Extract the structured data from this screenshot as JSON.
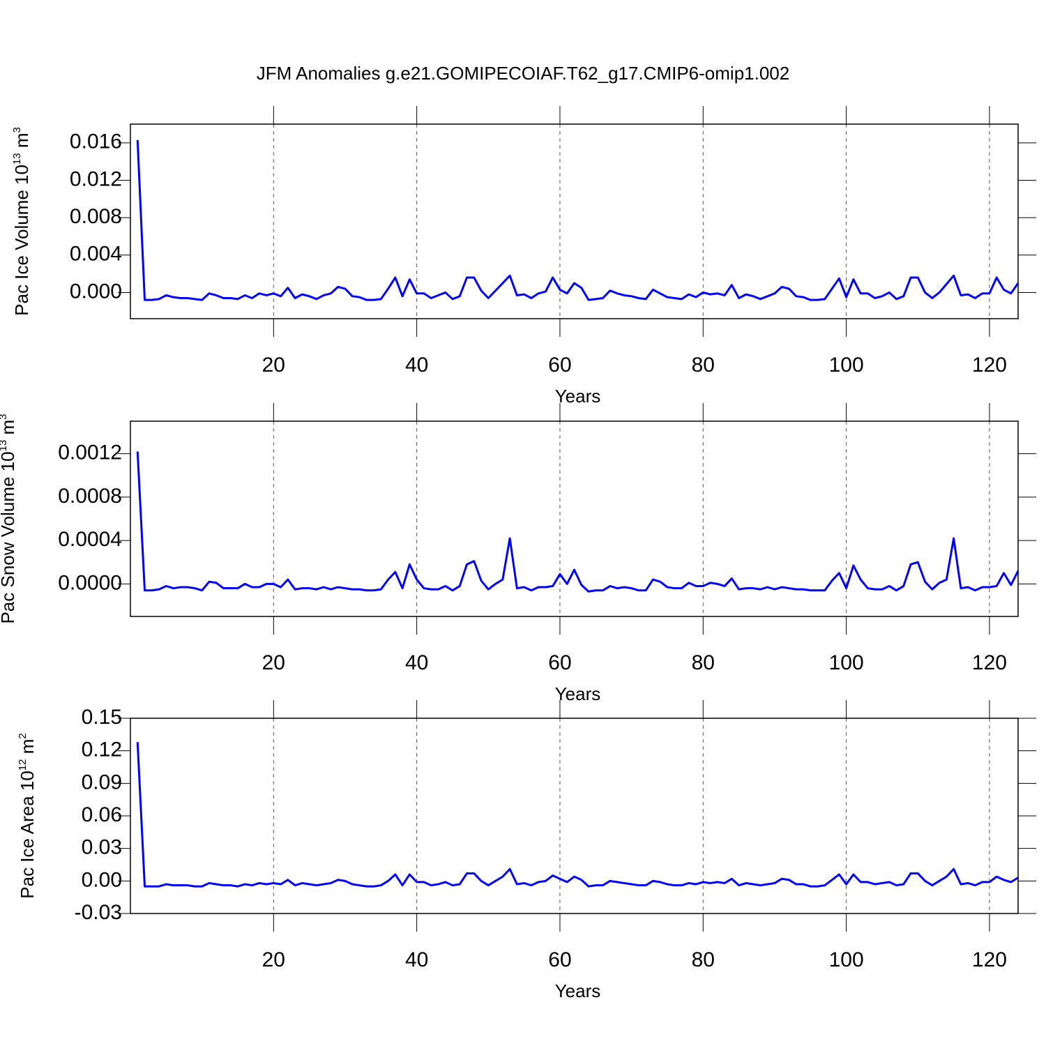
{
  "title": "JFM Anomalies g.e21.GOMIPECOIAF.T62_g17.CMIP6-omip1.002",
  "chart_data": [
    {
      "type": "line",
      "ylabel": {
        "text": "Pac Ice Volume 10",
        "exponent": "13",
        "unit": " m",
        "unit_exponent": "3"
      },
      "xlabel": "Years",
      "color": "#0000ff",
      "grid": "x",
      "xlim": [
        0,
        124
      ],
      "xticks": [
        20,
        40,
        60,
        80,
        100,
        120
      ],
      "ylim": [
        -0.0028,
        0.018
      ],
      "yticks": [
        {
          "value": 0,
          "label": "0.000"
        },
        0.004,
        0.008,
        0.012,
        0.016
      ],
      "x": [
        1,
        2,
        3,
        4,
        5,
        6,
        7,
        8,
        9,
        10,
        11,
        12,
        13,
        14,
        15,
        16,
        17,
        18,
        19,
        20,
        21,
        22,
        23,
        24,
        25,
        26,
        27,
        28,
        29,
        30,
        31,
        32,
        33,
        34,
        35,
        36,
        37,
        38,
        39,
        40,
        41,
        42,
        43,
        44,
        45,
        46,
        47,
        48,
        49,
        50,
        51,
        52,
        53,
        54,
        55,
        56,
        57,
        58,
        59,
        60,
        61,
        62,
        63,
        64,
        65,
        66,
        67,
        68,
        69,
        70,
        71,
        72,
        73,
        74,
        75,
        76,
        77,
        78,
        79,
        80,
        81,
        82,
        83,
        84,
        85,
        86,
        87,
        88,
        89,
        90,
        91,
        92,
        93,
        94,
        95,
        96,
        97,
        98,
        99,
        100,
        101,
        102,
        103,
        104,
        105,
        106,
        107,
        108,
        109,
        110,
        111,
        112,
        113,
        114,
        115,
        116,
        117,
        118,
        119,
        120,
        121,
        122,
        123,
        124
      ],
      "values": [
        0.0163,
        -0.0008,
        -0.0008,
        -0.0007,
        -0.0003,
        -0.0005,
        -0.0006,
        -0.0006,
        -0.0007,
        -0.0008,
        -0.0001,
        -0.0003,
        -0.0006,
        -0.0006,
        -0.0007,
        -0.0003,
        -0.0006,
        -0.0001,
        -0.0003,
        -0.0001,
        -0.0004,
        0.0005,
        -0.0006,
        -0.0002,
        -0.0004,
        -0.0007,
        -0.0003,
        -0.0001,
        0.0006,
        0.0004,
        -0.0004,
        -0.0005,
        -0.0008,
        -0.0008,
        -0.0007,
        0.0004,
        0.0016,
        -0.0004,
        0.0014,
        -0.0001,
        -0.0001,
        -0.0006,
        -0.0003,
        0,
        -0.0007,
        -0.0004,
        0.0016,
        0.0016,
        0.0002,
        -0.0006,
        0.0002,
        0.001,
        0.0018,
        -0.0003,
        -0.0002,
        -0.0006,
        -0.0001,
        0.0001,
        0.0016,
        0.0003,
        -0.0001,
        0.001,
        0.0005,
        -0.0008,
        -0.0007,
        -0.0006,
        0.0002,
        -0.0001,
        -0.0003,
        -0.0004,
        -0.0006,
        -0.0007,
        0.0003,
        -0.0001,
        -0.0005,
        -0.0006,
        -0.0007,
        -0.0002,
        -0.0005,
        0,
        -0.0002,
        -0.0001,
        -0.0003,
        0.0008,
        -0.0006,
        -0.0002,
        -0.0004,
        -0.0007,
        -0.0004,
        -0.0001,
        0.0006,
        0.0004,
        -0.0004,
        -0.0005,
        -0.0008,
        -0.0008,
        -0.0007,
        0.0004,
        0.0015,
        -0.0005,
        0.0014,
        -0.0001,
        -0.0001,
        -0.0006,
        -0.0004,
        0,
        -0.0007,
        -0.0004,
        0.0016,
        0.0016,
        0,
        -0.0006,
        0,
        0.0009,
        0.0018,
        -0.0003,
        -0.0002,
        -0.0006,
        -0.0001,
        -0.0001,
        0.0016,
        0.0003,
        -0.0001,
        0.001
      ]
    },
    {
      "type": "line",
      "ylabel": {
        "text": "Pac Snow Volume 10",
        "exponent": "13",
        "unit": " m",
        "unit_exponent": "3"
      },
      "xlabel": "Years",
      "color": "#0000ff",
      "grid": "x",
      "xlim": [
        0,
        124
      ],
      "xticks": [
        20,
        40,
        60,
        80,
        100,
        120
      ],
      "ylim": [
        -0.0003,
        0.0015
      ],
      "yticks": [
        {
          "value": 0,
          "label": "0.0000"
        },
        0.0004,
        0.0008,
        0.0012
      ],
      "x": [
        1,
        2,
        3,
        4,
        5,
        6,
        7,
        8,
        9,
        10,
        11,
        12,
        13,
        14,
        15,
        16,
        17,
        18,
        19,
        20,
        21,
        22,
        23,
        24,
        25,
        26,
        27,
        28,
        29,
        30,
        31,
        32,
        33,
        34,
        35,
        36,
        37,
        38,
        39,
        40,
        41,
        42,
        43,
        44,
        45,
        46,
        47,
        48,
        49,
        50,
        51,
        52,
        53,
        54,
        55,
        56,
        57,
        58,
        59,
        60,
        61,
        62,
        63,
        64,
        65,
        66,
        67,
        68,
        69,
        70,
        71,
        72,
        73,
        74,
        75,
        76,
        77,
        78,
        79,
        80,
        81,
        82,
        83,
        84,
        85,
        86,
        87,
        88,
        89,
        90,
        91,
        92,
        93,
        94,
        95,
        96,
        97,
        98,
        99,
        100,
        101,
        102,
        103,
        104,
        105,
        106,
        107,
        108,
        109,
        110,
        111,
        112,
        113,
        114,
        115,
        116,
        117,
        118,
        119,
        120,
        121,
        122,
        123,
        124
      ],
      "values": [
        0.00122,
        -6e-05,
        -6e-05,
        -5e-05,
        -2e-05,
        -4e-05,
        -3e-05,
        -3e-05,
        -4e-05,
        -6e-05,
        2e-05,
        1e-05,
        -4e-05,
        -4e-05,
        -4e-05,
        0,
        -3e-05,
        -3e-05,
        0,
        0,
        -3e-05,
        4e-05,
        -5e-05,
        -4e-05,
        -4e-05,
        -5e-05,
        -3e-05,
        -5e-05,
        -3e-05,
        -4e-05,
        -5e-05,
        -5e-05,
        -6e-05,
        -6e-05,
        -5e-05,
        4e-05,
        0.00011,
        -4e-05,
        0.00018,
        4e-05,
        -4e-05,
        -5e-05,
        -5e-05,
        -2e-05,
        -6e-05,
        -2e-05,
        0.00018,
        0.00021,
        3e-05,
        -5e-05,
        0,
        4e-05,
        0.00042,
        -4e-05,
        -3e-05,
        -6e-05,
        -3e-05,
        -3e-05,
        -2e-05,
        9e-05,
        0,
        0.00013,
        -1e-05,
        -7e-05,
        -6e-05,
        -6e-05,
        -2e-05,
        -4e-05,
        -3e-05,
        -4e-05,
        -6e-05,
        -6e-05,
        4e-05,
        2e-05,
        -3e-05,
        -4e-05,
        -4e-05,
        1e-05,
        -2e-05,
        -2e-05,
        1e-05,
        0,
        -2e-05,
        5e-05,
        -5e-05,
        -4e-05,
        -4e-05,
        -5e-05,
        -3e-05,
        -5e-05,
        -3e-05,
        -4e-05,
        -5e-05,
        -5e-05,
        -6e-05,
        -6e-05,
        -6e-05,
        3e-05,
        0.0001,
        -4e-05,
        0.00017,
        4e-05,
        -4e-05,
        -5e-05,
        -5e-05,
        -2e-05,
        -6e-05,
        -2e-05,
        0.00018,
        0.0002,
        2e-05,
        -5e-05,
        1e-05,
        4e-05,
        0.00042,
        -4e-05,
        -3e-05,
        -6e-05,
        -3e-05,
        -3e-05,
        -2e-05,
        0.0001,
        -1e-05,
        0.00012
      ]
    },
    {
      "type": "line",
      "ylabel": {
        "text": "Pac Ice Area 10",
        "exponent": "12",
        "unit": " m",
        "unit_exponent": "2"
      },
      "xlabel": "Years",
      "color": "#0000ff",
      "grid": "x",
      "xlim": [
        0,
        124
      ],
      "xticks": [
        20,
        40,
        60,
        80,
        100,
        120
      ],
      "ylim": [
        -0.03,
        0.15
      ],
      "yticks": [
        -0.03,
        {
          "value": 0,
          "label": "0.00"
        },
        0.03,
        0.06,
        0.09,
        0.12,
        0.15
      ],
      "x": [
        1,
        2,
        3,
        4,
        5,
        6,
        7,
        8,
        9,
        10,
        11,
        12,
        13,
        14,
        15,
        16,
        17,
        18,
        19,
        20,
        21,
        22,
        23,
        24,
        25,
        26,
        27,
        28,
        29,
        30,
        31,
        32,
        33,
        34,
        35,
        36,
        37,
        38,
        39,
        40,
        41,
        42,
        43,
        44,
        45,
        46,
        47,
        48,
        49,
        50,
        51,
        52,
        53,
        54,
        55,
        56,
        57,
        58,
        59,
        60,
        61,
        62,
        63,
        64,
        65,
        66,
        67,
        68,
        69,
        70,
        71,
        72,
        73,
        74,
        75,
        76,
        77,
        78,
        79,
        80,
        81,
        82,
        83,
        84,
        85,
        86,
        87,
        88,
        89,
        90,
        91,
        92,
        93,
        94,
        95,
        96,
        97,
        98,
        99,
        100,
        101,
        102,
        103,
        104,
        105,
        106,
        107,
        108,
        109,
        110,
        111,
        112,
        113,
        114,
        115,
        116,
        117,
        118,
        119,
        120,
        121,
        122,
        123,
        124
      ],
      "values": [
        0.128,
        -0.005,
        -0.005,
        -0.005,
        -0.003,
        -0.004,
        -0.004,
        -0.004,
        -0.005,
        -0.005,
        -0.002,
        -0.003,
        -0.004,
        -0.004,
        -0.005,
        -0.003,
        -0.004,
        -0.002,
        -0.003,
        -0.002,
        -0.003,
        0.001,
        -0.004,
        -0.002,
        -0.003,
        -0.004,
        -0.003,
        -0.002,
        0.001,
        0,
        -0.003,
        -0.004,
        -0.005,
        -0.005,
        -0.004,
        0,
        0.006,
        -0.004,
        0.006,
        -0.001,
        -0.001,
        -0.004,
        -0.003,
        -0.001,
        -0.004,
        -0.003,
        0.007,
        0.007,
        0,
        -0.004,
        0,
        0.004,
        0.011,
        -0.003,
        -0.002,
        -0.004,
        -0.001,
        0,
        0.005,
        0.002,
        -0.001,
        0.004,
        0.001,
        -0.005,
        -0.004,
        -0.004,
        0,
        -0.001,
        -0.002,
        -0.003,
        -0.004,
        -0.004,
        0,
        -0.001,
        -0.003,
        -0.004,
        -0.004,
        -0.002,
        -0.003,
        -0.001,
        -0.002,
        -0.001,
        -0.002,
        0.002,
        -0.004,
        -0.002,
        -0.003,
        -0.004,
        -0.003,
        -0.002,
        0.002,
        0.001,
        -0.003,
        -0.003,
        -0.005,
        -0.005,
        -0.004,
        0.001,
        0.006,
        -0.003,
        0.006,
        -0.001,
        -0.001,
        -0.003,
        -0.002,
        -0.001,
        -0.004,
        -0.003,
        0.007,
        0.007,
        0,
        -0.004,
        0,
        0.004,
        0.011,
        -0.003,
        -0.002,
        -0.004,
        -0.001,
        -0.001,
        0.004,
        0.001,
        -0.001,
        0.003
      ]
    }
  ]
}
